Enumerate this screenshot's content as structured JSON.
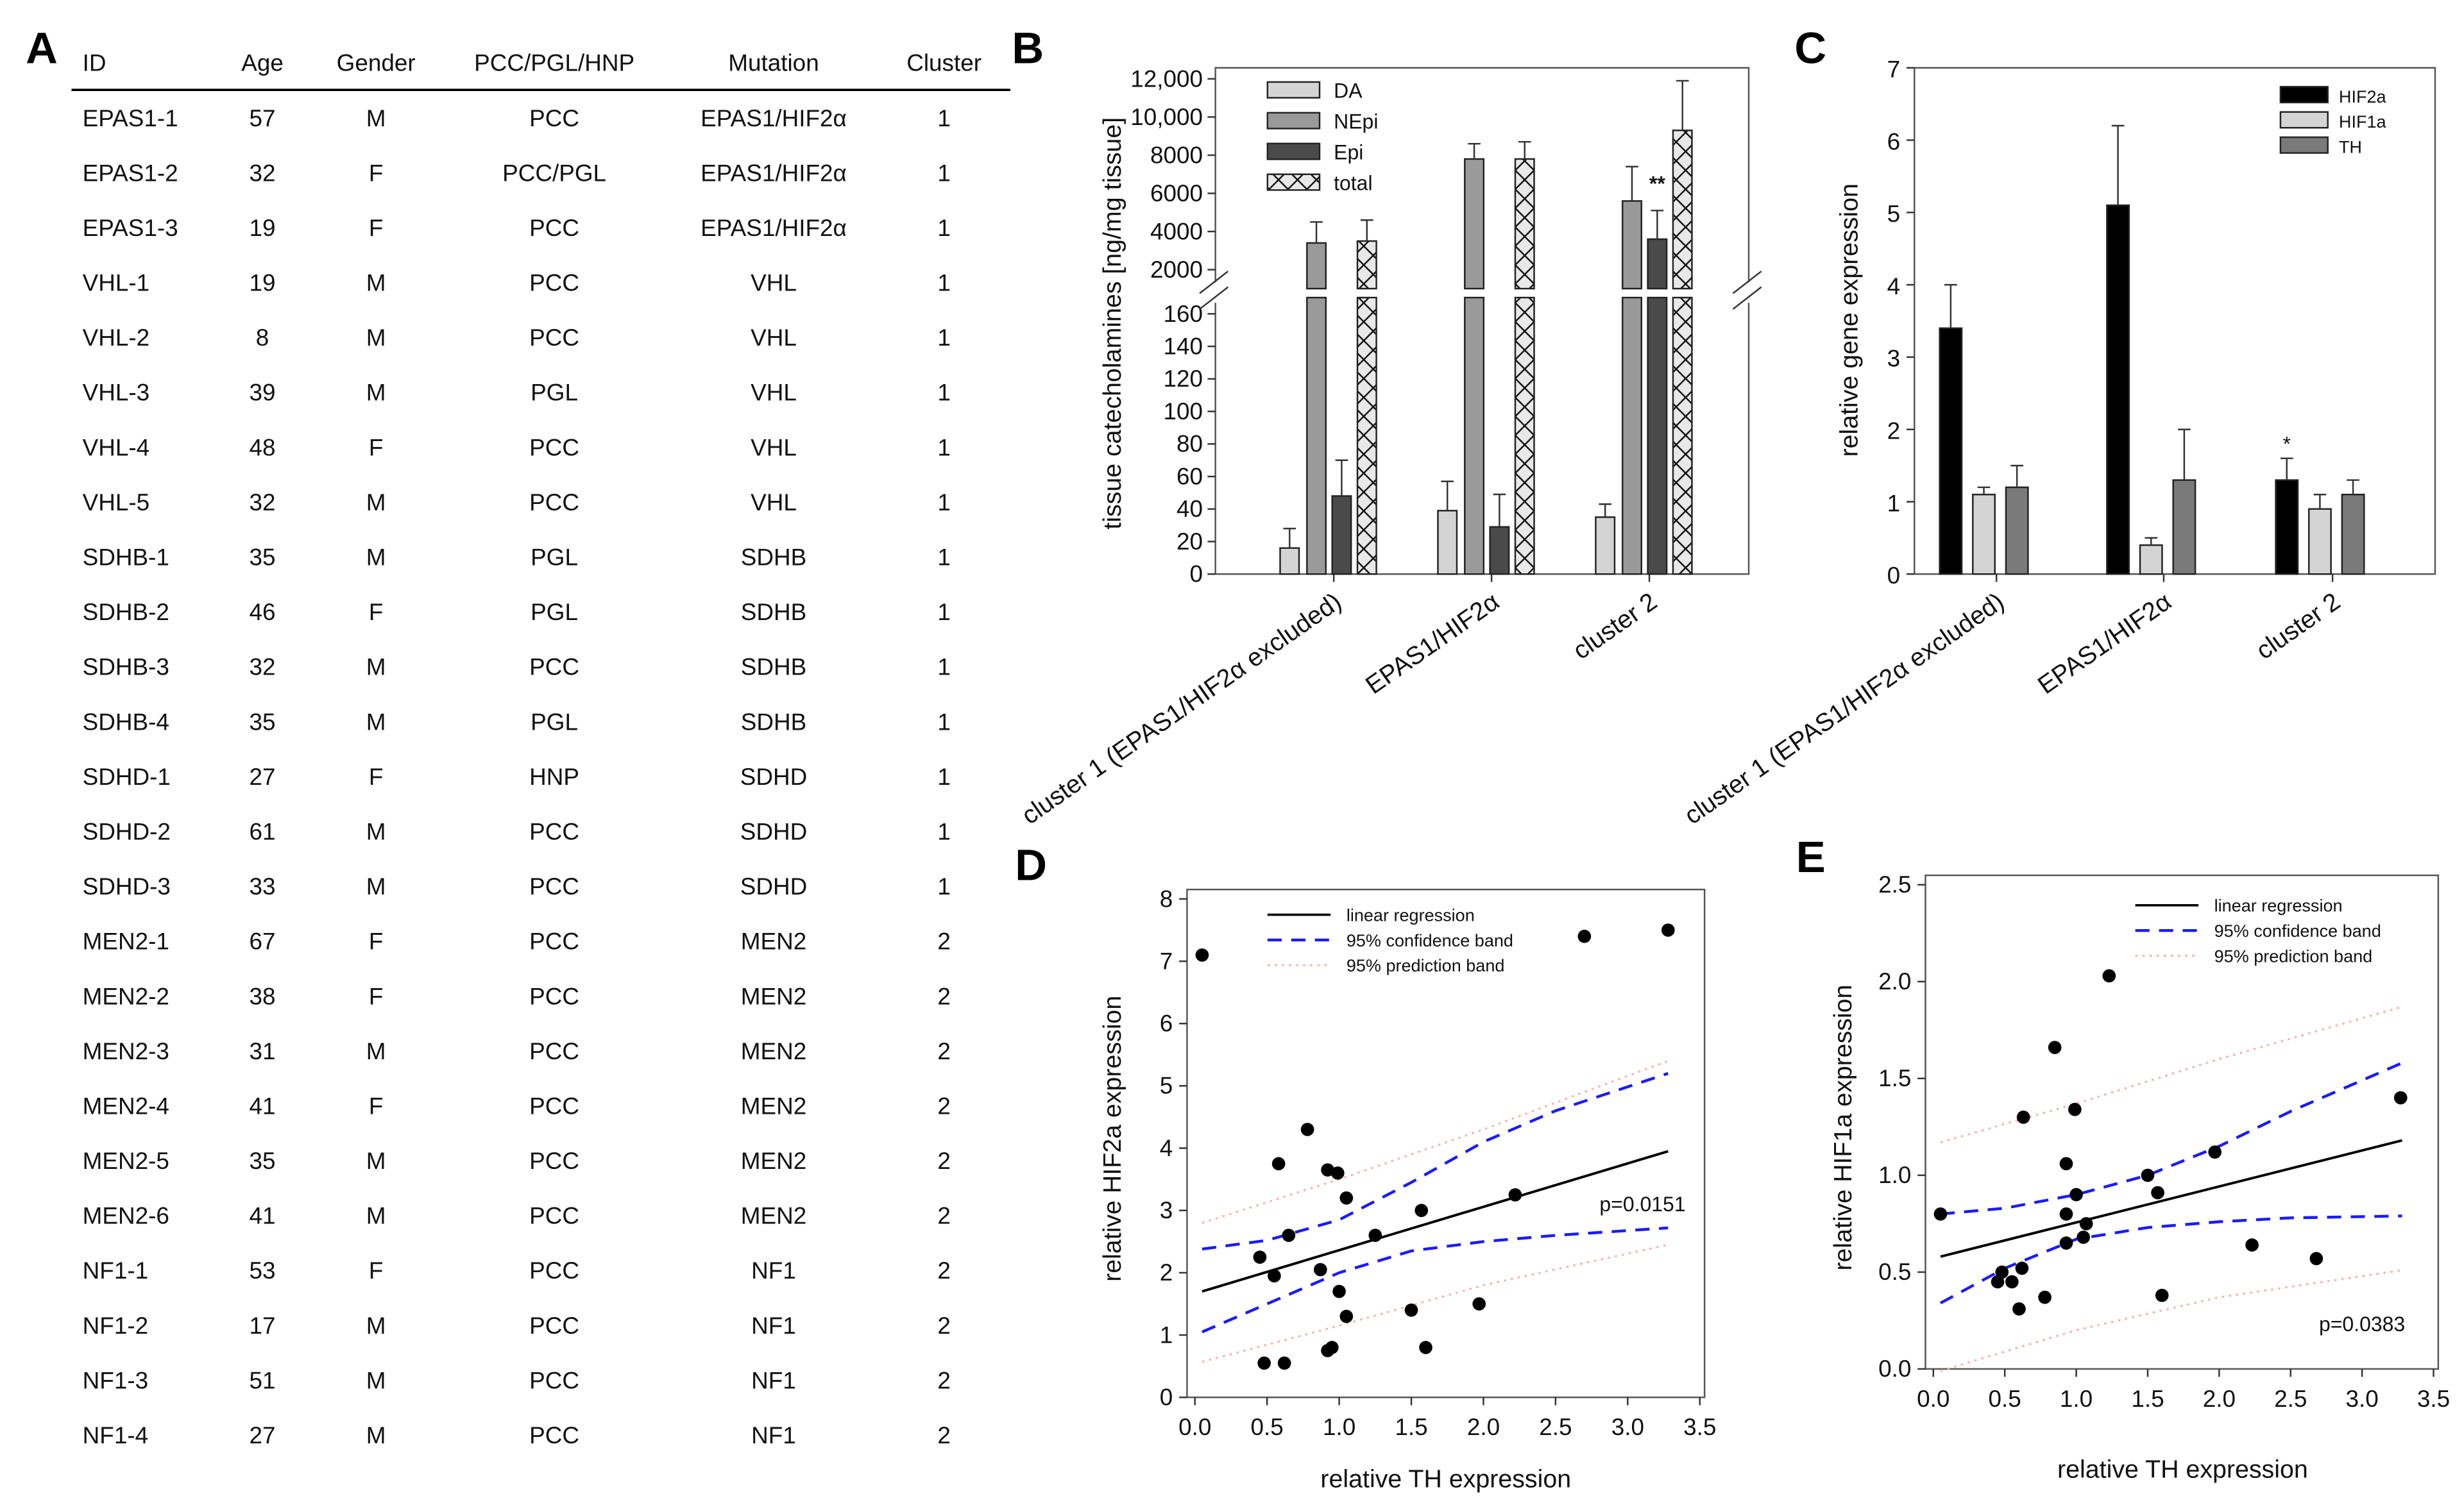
{
  "panels": {
    "A": "A",
    "B": "B",
    "C": "C",
    "D": "D",
    "E": "E"
  },
  "table": {
    "headers": [
      "ID",
      "Age",
      "Gender",
      "PCC/PGL/HNP",
      "Mutation",
      "Cluster"
    ],
    "rows": [
      [
        "EPAS1-1",
        "57",
        "M",
        "PCC",
        "EPAS1/HIF2α",
        "1"
      ],
      [
        "EPAS1-2",
        "32",
        "F",
        "PCC/PGL",
        "EPAS1/HIF2α",
        "1"
      ],
      [
        "EPAS1-3",
        "19",
        "F",
        "PCC",
        "EPAS1/HIF2α",
        "1"
      ],
      [
        "VHL-1",
        "19",
        "M",
        "PCC",
        "VHL",
        "1"
      ],
      [
        "VHL-2",
        "8",
        "M",
        "PCC",
        "VHL",
        "1"
      ],
      [
        "VHL-3",
        "39",
        "M",
        "PGL",
        "VHL",
        "1"
      ],
      [
        "VHL-4",
        "48",
        "F",
        "PCC",
        "VHL",
        "1"
      ],
      [
        "VHL-5",
        "32",
        "M",
        "PCC",
        "VHL",
        "1"
      ],
      [
        "SDHB-1",
        "35",
        "M",
        "PGL",
        "SDHB",
        "1"
      ],
      [
        "SDHB-2",
        "46",
        "F",
        "PGL",
        "SDHB",
        "1"
      ],
      [
        "SDHB-3",
        "32",
        "M",
        "PCC",
        "SDHB",
        "1"
      ],
      [
        "SDHB-4",
        "35",
        "M",
        "PGL",
        "SDHB",
        "1"
      ],
      [
        "SDHD-1",
        "27",
        "F",
        "HNP",
        "SDHD",
        "1"
      ],
      [
        "SDHD-2",
        "61",
        "M",
        "PCC",
        "SDHD",
        "1"
      ],
      [
        "SDHD-3",
        "33",
        "M",
        "PCC",
        "SDHD",
        "1"
      ],
      [
        "MEN2-1",
        "67",
        "F",
        "PCC",
        "MEN2",
        "2"
      ],
      [
        "MEN2-2",
        "38",
        "F",
        "PCC",
        "MEN2",
        "2"
      ],
      [
        "MEN2-3",
        "31",
        "M",
        "PCC",
        "MEN2",
        "2"
      ],
      [
        "MEN2-4",
        "41",
        "F",
        "PCC",
        "MEN2",
        "2"
      ],
      [
        "MEN2-5",
        "35",
        "M",
        "PCC",
        "MEN2",
        "2"
      ],
      [
        "MEN2-6",
        "41",
        "M",
        "PCC",
        "MEN2",
        "2"
      ],
      [
        "NF1-1",
        "53",
        "F",
        "PCC",
        "NF1",
        "2"
      ],
      [
        "NF1-2",
        "17",
        "M",
        "PCC",
        "NF1",
        "2"
      ],
      [
        "NF1-3",
        "51",
        "M",
        "PCC",
        "NF1",
        "2"
      ],
      [
        "NF1-4",
        "27",
        "M",
        "PCC",
        "NF1",
        "2"
      ]
    ]
  },
  "chart_data": [
    {
      "panel": "B",
      "type": "bar",
      "ylabel": "tissue catecholamines [ng/mg tissue]",
      "broken_axis": true,
      "categories": [
        "cluster 1 (EPAS1/HIF2α excluded)",
        "EPAS1/HIF2α",
        "cluster 2"
      ],
      "yticks_upper": [
        "12,000",
        "10,000",
        "8000",
        "6000",
        "4000",
        "2000"
      ],
      "yticks_upper_values": [
        12000,
        10000,
        8000,
        6000,
        4000,
        2000
      ],
      "yticks_lower": [
        "160",
        "140",
        "120",
        "100",
        "80",
        "60",
        "40",
        "20",
        "0"
      ],
      "yticks_lower_values": [
        160,
        140,
        120,
        100,
        80,
        60,
        40,
        20,
        0
      ],
      "ylim_lower": [
        0,
        170
      ],
      "ylim_upper": [
        1000,
        12500
      ],
      "series": [
        {
          "name": "DA",
          "values": [
            16,
            39,
            35
          ],
          "errors": [
            12,
            18,
            8
          ],
          "color": "#d4d4d4"
        },
        {
          "name": "NEpi",
          "values": [
            3400,
            7800,
            5600
          ],
          "errors": [
            1100,
            800,
            1800
          ],
          "color": "#9a9a9a"
        },
        {
          "name": "Epi",
          "values": [
            48,
            29,
            3600
          ],
          "errors": [
            22,
            20,
            1500
          ],
          "color": "#4a4a4a"
        },
        {
          "name": "total",
          "values": [
            3500,
            7800,
            9300
          ],
          "errors": [
            1100,
            900,
            2600
          ],
          "color": "#e8e8e8",
          "pattern": "crosshatch"
        }
      ],
      "annotations": [
        {
          "text": "**",
          "category": 2,
          "series": "Epi"
        }
      ]
    },
    {
      "panel": "C",
      "type": "bar",
      "ylabel": "relative gene expression",
      "ylim": [
        0,
        7
      ],
      "yticks": [
        "0",
        "1",
        "2",
        "3",
        "4",
        "5",
        "6",
        "7"
      ],
      "categories": [
        "cluster 1 (EPAS1/HIF2α excluded)",
        "EPAS1/HIF2α",
        "cluster 2"
      ],
      "series": [
        {
          "name": "HIF2a",
          "values": [
            3.4,
            5.1,
            1.3
          ],
          "errors": [
            0.6,
            1.1,
            0.3
          ],
          "color": "#000000"
        },
        {
          "name": "HIF1a",
          "values": [
            1.1,
            0.4,
            0.9
          ],
          "errors": [
            0.1,
            0.1,
            0.2
          ],
          "color": "#d4d4d4"
        },
        {
          "name": "TH",
          "values": [
            1.2,
            1.3,
            1.1
          ],
          "errors": [
            0.3,
            0.7,
            0.2
          ],
          "color": "#7a7a7a"
        }
      ],
      "annotations": [
        {
          "text": "*",
          "category": 2,
          "series": "HIF2a"
        }
      ]
    },
    {
      "panel": "D",
      "type": "scatter",
      "xlabel": "relative TH expression",
      "ylabel": "relative HIF2a expression",
      "xlim": [
        0,
        3.5
      ],
      "ylim": [
        0,
        8
      ],
      "xticks": [
        "0.0",
        "0.5",
        "1.0",
        "1.5",
        "2.0",
        "2.5",
        "3.0",
        "3.5"
      ],
      "yticks": [
        "0",
        "1",
        "2",
        "3",
        "4",
        "5",
        "6",
        "7",
        "8"
      ],
      "points": [
        [
          0.05,
          7.1
        ],
        [
          2.7,
          7.4
        ],
        [
          3.28,
          7.5
        ],
        [
          0.78,
          4.3
        ],
        [
          0.58,
          3.75
        ],
        [
          0.92,
          3.65
        ],
        [
          0.99,
          3.6
        ],
        [
          1.05,
          3.2
        ],
        [
          1.57,
          3.0
        ],
        [
          2.22,
          3.25
        ],
        [
          0.65,
          2.6
        ],
        [
          1.25,
          2.6
        ],
        [
          0.45,
          2.25
        ],
        [
          0.55,
          1.95
        ],
        [
          0.87,
          2.05
        ],
        [
          1.0,
          1.7
        ],
        [
          1.05,
          1.3
        ],
        [
          1.5,
          1.4
        ],
        [
          1.97,
          1.5
        ],
        [
          0.92,
          0.75
        ],
        [
          0.95,
          0.8
        ],
        [
          1.6,
          0.8
        ],
        [
          0.48,
          0.55
        ],
        [
          0.62,
          0.55
        ]
      ],
      "regression": [
        [
          0.05,
          1.7
        ],
        [
          3.28,
          3.95
        ]
      ],
      "confidence_upper": [
        [
          0.05,
          2.38
        ],
        [
          0.5,
          2.52
        ],
        [
          1.0,
          2.85
        ],
        [
          1.5,
          3.45
        ],
        [
          2.0,
          4.1
        ],
        [
          2.5,
          4.6
        ],
        [
          3.28,
          5.2
        ]
      ],
      "confidence_lower": [
        [
          0.05,
          1.05
        ],
        [
          0.5,
          1.5
        ],
        [
          1.0,
          2.0
        ],
        [
          1.5,
          2.35
        ],
        [
          2.0,
          2.5
        ],
        [
          2.5,
          2.6
        ],
        [
          3.28,
          2.72
        ]
      ],
      "prediction_upper": [
        [
          0.05,
          2.8
        ],
        [
          1.0,
          3.5
        ],
        [
          2.0,
          4.3
        ],
        [
          3.28,
          5.4
        ]
      ],
      "prediction_lower": [
        [
          0.05,
          0.57
        ],
        [
          1.0,
          1.15
        ],
        [
          2.0,
          1.8
        ],
        [
          3.28,
          2.45
        ]
      ],
      "legend": [
        "linear regression",
        "95% confidence band",
        "95% prediction band"
      ],
      "annotation": "p=0.0151"
    },
    {
      "panel": "E",
      "type": "scatter",
      "xlabel": "relative TH expression",
      "ylabel": "relative HIF1a expression",
      "xlim": [
        0,
        3.5
      ],
      "ylim": [
        0,
        2.5
      ],
      "xticks": [
        "0.0",
        "0.5",
        "1.0",
        "1.5",
        "2.0",
        "2.5",
        "3.0",
        "3.5"
      ],
      "yticks": [
        "0.0",
        "0.5",
        "1.0",
        "1.5",
        "2.0",
        "2.5"
      ],
      "points": [
        [
          0.05,
          0.8
        ],
        [
          1.23,
          2.03
        ],
        [
          0.85,
          1.66
        ],
        [
          0.63,
          1.3
        ],
        [
          0.99,
          1.34
        ],
        [
          3.27,
          1.4
        ],
        [
          1.97,
          1.12
        ],
        [
          0.93,
          1.06
        ],
        [
          1.5,
          1.0
        ],
        [
          1.0,
          0.9
        ],
        [
          1.57,
          0.91
        ],
        [
          0.93,
          0.8
        ],
        [
          1.07,
          0.75
        ],
        [
          0.93,
          0.65
        ],
        [
          1.05,
          0.68
        ],
        [
          0.48,
          0.5
        ],
        [
          0.62,
          0.52
        ],
        [
          0.45,
          0.45
        ],
        [
          0.55,
          0.45
        ],
        [
          0.78,
          0.37
        ],
        [
          0.6,
          0.31
        ],
        [
          2.23,
          0.64
        ],
        [
          2.68,
          0.57
        ],
        [
          1.6,
          0.38
        ]
      ],
      "regression": [
        [
          0.05,
          0.58
        ],
        [
          3.28,
          1.18
        ]
      ],
      "confidence_upper": [
        [
          0.05,
          0.8
        ],
        [
          0.5,
          0.83
        ],
        [
          1.0,
          0.9
        ],
        [
          1.5,
          1.0
        ],
        [
          2.0,
          1.15
        ],
        [
          2.5,
          1.33
        ],
        [
          3.28,
          1.58
        ]
      ],
      "confidence_lower": [
        [
          0.05,
          0.34
        ],
        [
          0.5,
          0.52
        ],
        [
          1.0,
          0.67
        ],
        [
          1.5,
          0.73
        ],
        [
          2.0,
          0.76
        ],
        [
          2.5,
          0.78
        ],
        [
          3.28,
          0.79
        ]
      ],
      "prediction_upper": [
        [
          0.05,
          1.17
        ],
        [
          1.0,
          1.37
        ],
        [
          2.0,
          1.6
        ],
        [
          3.28,
          1.87
        ]
      ],
      "prediction_lower": [
        [
          0.05,
          -0.01
        ],
        [
          1.0,
          0.2
        ],
        [
          2.0,
          0.37
        ],
        [
          3.28,
          0.51
        ]
      ],
      "legend": [
        "linear regression",
        "95% confidence band",
        "95% prediction band"
      ],
      "annotation": "p=0.0383"
    }
  ]
}
